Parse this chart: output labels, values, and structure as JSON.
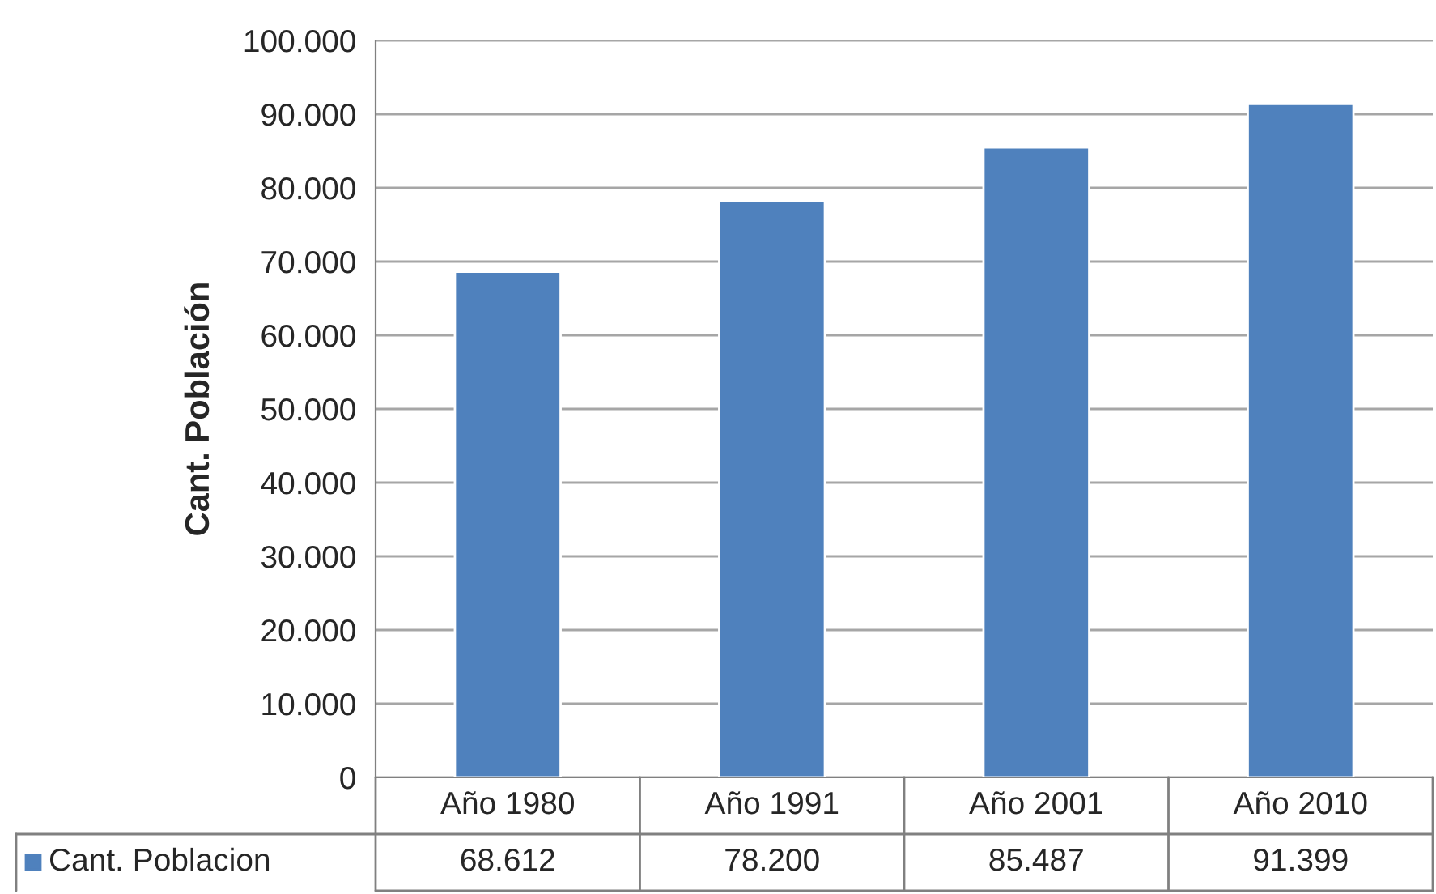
{
  "chart_data": {
    "type": "bar",
    "ylabel": "Cant. Población",
    "categories": [
      "Año 1980",
      "Año 1991",
      "Año 2001",
      "Año 2010"
    ],
    "series": [
      {
        "name": "Cant. Poblacion",
        "color": "#4f81bd",
        "values": [
          68612,
          78200,
          85487,
          91399
        ],
        "value_labels": [
          "68.612",
          "78.200",
          "85.487",
          "91.399"
        ]
      }
    ],
    "ylim": [
      0,
      100000
    ],
    "yticks": [
      0,
      {
        "value": 10000,
        "label": "10.000"
      },
      {
        "value": 20000,
        "label": "20.000"
      },
      {
        "value": 30000,
        "label": "30.000"
      },
      {
        "value": 40000,
        "label": "40.000"
      },
      {
        "value": 50000,
        "label": "50.000"
      },
      {
        "value": 60000,
        "label": "60.000"
      },
      {
        "value": 70000,
        "label": "70.000"
      },
      {
        "value": 80000,
        "label": "80.000"
      },
      {
        "value": 90000,
        "label": "90.000"
      },
      {
        "value": 100000,
        "label": "100.000"
      }
    ],
    "grid": "y",
    "legend": "bottom"
  }
}
